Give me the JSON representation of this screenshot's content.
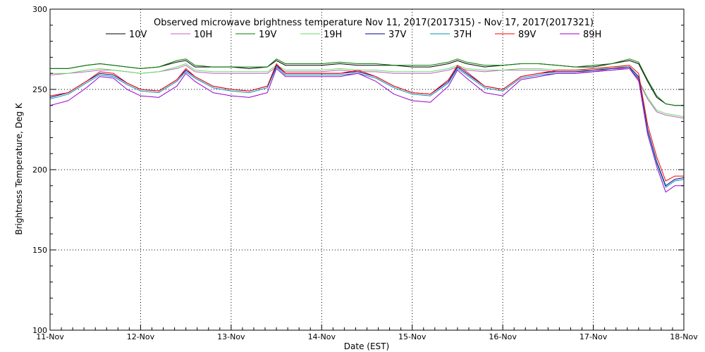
{
  "chart_data": {
    "type": "line",
    "title": "Observed microwave brightness temperature Nov 11, 2017(2017315) - Nov 17, 2017(2017321)",
    "xlabel": "Date (EST)",
    "ylabel": "Brightness Temperature, Deg K",
    "xlim": [
      0,
      7
    ],
    "ylim": [
      100,
      300
    ],
    "x_ticks": [
      {
        "x": 0,
        "label": "11-Nov"
      },
      {
        "x": 1,
        "label": "12-Nov"
      },
      {
        "x": 2,
        "label": "13-Nov"
      },
      {
        "x": 3,
        "label": "14-Nov"
      },
      {
        "x": 4,
        "label": "15-Nov"
      },
      {
        "x": 5,
        "label": "16-Nov"
      },
      {
        "x": 6,
        "label": "17-Nov"
      },
      {
        "x": 7,
        "label": "18-Nov"
      }
    ],
    "y_ticks": [
      100,
      150,
      200,
      250,
      300
    ],
    "grid": true,
    "legend_position": "top",
    "x": [
      0.0,
      0.2,
      0.4,
      0.55,
      0.7,
      0.85,
      1.0,
      1.2,
      1.4,
      1.5,
      1.6,
      1.8,
      2.0,
      2.2,
      2.4,
      2.5,
      2.6,
      2.8,
      3.0,
      3.2,
      3.4,
      3.6,
      3.8,
      4.0,
      4.2,
      4.4,
      4.5,
      4.6,
      4.8,
      5.0,
      5.2,
      5.4,
      5.6,
      5.8,
      6.0,
      6.2,
      6.4,
      6.5,
      6.6,
      6.7,
      6.8,
      6.9,
      7.0
    ],
    "series": [
      {
        "name": "10V",
        "color": "#000000",
        "values": [
          263,
          263,
          265,
          266,
          265,
          264,
          263,
          264,
          267,
          268,
          264,
          264,
          264,
          263,
          264,
          268,
          265,
          265,
          265,
          266,
          265,
          265,
          265,
          264,
          264,
          266,
          268,
          266,
          264,
          265,
          266,
          266,
          265,
          264,
          264,
          266,
          268,
          266,
          255,
          245,
          241,
          240,
          240
        ]
      },
      {
        "name": "10H",
        "color": "#c060c0",
        "values": [
          259,
          260,
          261,
          262,
          262,
          261,
          260,
          261,
          263,
          265,
          261,
          260,
          260,
          260,
          260,
          264,
          261,
          261,
          261,
          262,
          261,
          261,
          260,
          260,
          260,
          262,
          264,
          262,
          261,
          262,
          262,
          262,
          261,
          261,
          261,
          263,
          263,
          255,
          244,
          236,
          234,
          233,
          232
        ]
      },
      {
        "name": "19V",
        "color": "#008000",
        "values": [
          263,
          263,
          265,
          266,
          265,
          264,
          263,
          264,
          268,
          269,
          265,
          264,
          264,
          264,
          264,
          269,
          266,
          266,
          266,
          267,
          266,
          266,
          265,
          265,
          265,
          267,
          269,
          267,
          265,
          265,
          266,
          266,
          265,
          264,
          265,
          266,
          269,
          267,
          256,
          246,
          241,
          240,
          240
        ]
      },
      {
        "name": "19H",
        "color": "#66dd66",
        "values": [
          260,
          260,
          262,
          263,
          262,
          261,
          260,
          261,
          264,
          266,
          262,
          261,
          261,
          261,
          261,
          265,
          262,
          262,
          262,
          263,
          262,
          262,
          261,
          261,
          261,
          263,
          265,
          263,
          262,
          262,
          263,
          263,
          262,
          262,
          262,
          264,
          264,
          256,
          245,
          237,
          235,
          234,
          233
        ]
      },
      {
        "name": "37V",
        "color": "#00008b",
        "values": [
          245,
          248,
          255,
          260,
          259,
          254,
          250,
          249,
          256,
          262,
          258,
          252,
          250,
          249,
          252,
          265,
          260,
          260,
          260,
          260,
          261,
          258,
          252,
          248,
          247,
          255,
          264,
          260,
          252,
          250,
          258,
          260,
          261,
          261,
          262,
          263,
          264,
          258,
          225,
          205,
          190,
          194,
          195
        ]
      },
      {
        "name": "37H",
        "color": "#0090b0",
        "values": [
          244,
          247,
          254,
          259,
          258,
          253,
          249,
          248,
          255,
          261,
          257,
          251,
          249,
          248,
          251,
          264,
          259,
          259,
          259,
          259,
          260,
          257,
          251,
          247,
          246,
          254,
          263,
          259,
          251,
          249,
          257,
          259,
          260,
          260,
          261,
          262,
          263,
          257,
          224,
          204,
          189,
          193,
          194
        ]
      },
      {
        "name": "89V",
        "color": "#ff0000",
        "values": [
          246,
          248,
          255,
          261,
          260,
          254,
          250,
          249,
          256,
          263,
          258,
          252,
          250,
          249,
          252,
          266,
          260,
          260,
          260,
          260,
          262,
          258,
          252,
          248,
          247,
          256,
          265,
          261,
          252,
          250,
          258,
          260,
          262,
          262,
          263,
          264,
          265,
          260,
          228,
          208,
          193,
          196,
          196
        ]
      },
      {
        "name": "89H",
        "color": "#9900cc",
        "values": [
          240,
          243,
          251,
          258,
          257,
          250,
          246,
          245,
          252,
          260,
          255,
          248,
          246,
          245,
          248,
          263,
          258,
          258,
          258,
          258,
          260,
          255,
          247,
          243,
          242,
          252,
          262,
          257,
          248,
          246,
          256,
          258,
          260,
          260,
          261,
          262,
          263,
          256,
          222,
          202,
          186,
          190,
          190
        ]
      }
    ]
  }
}
